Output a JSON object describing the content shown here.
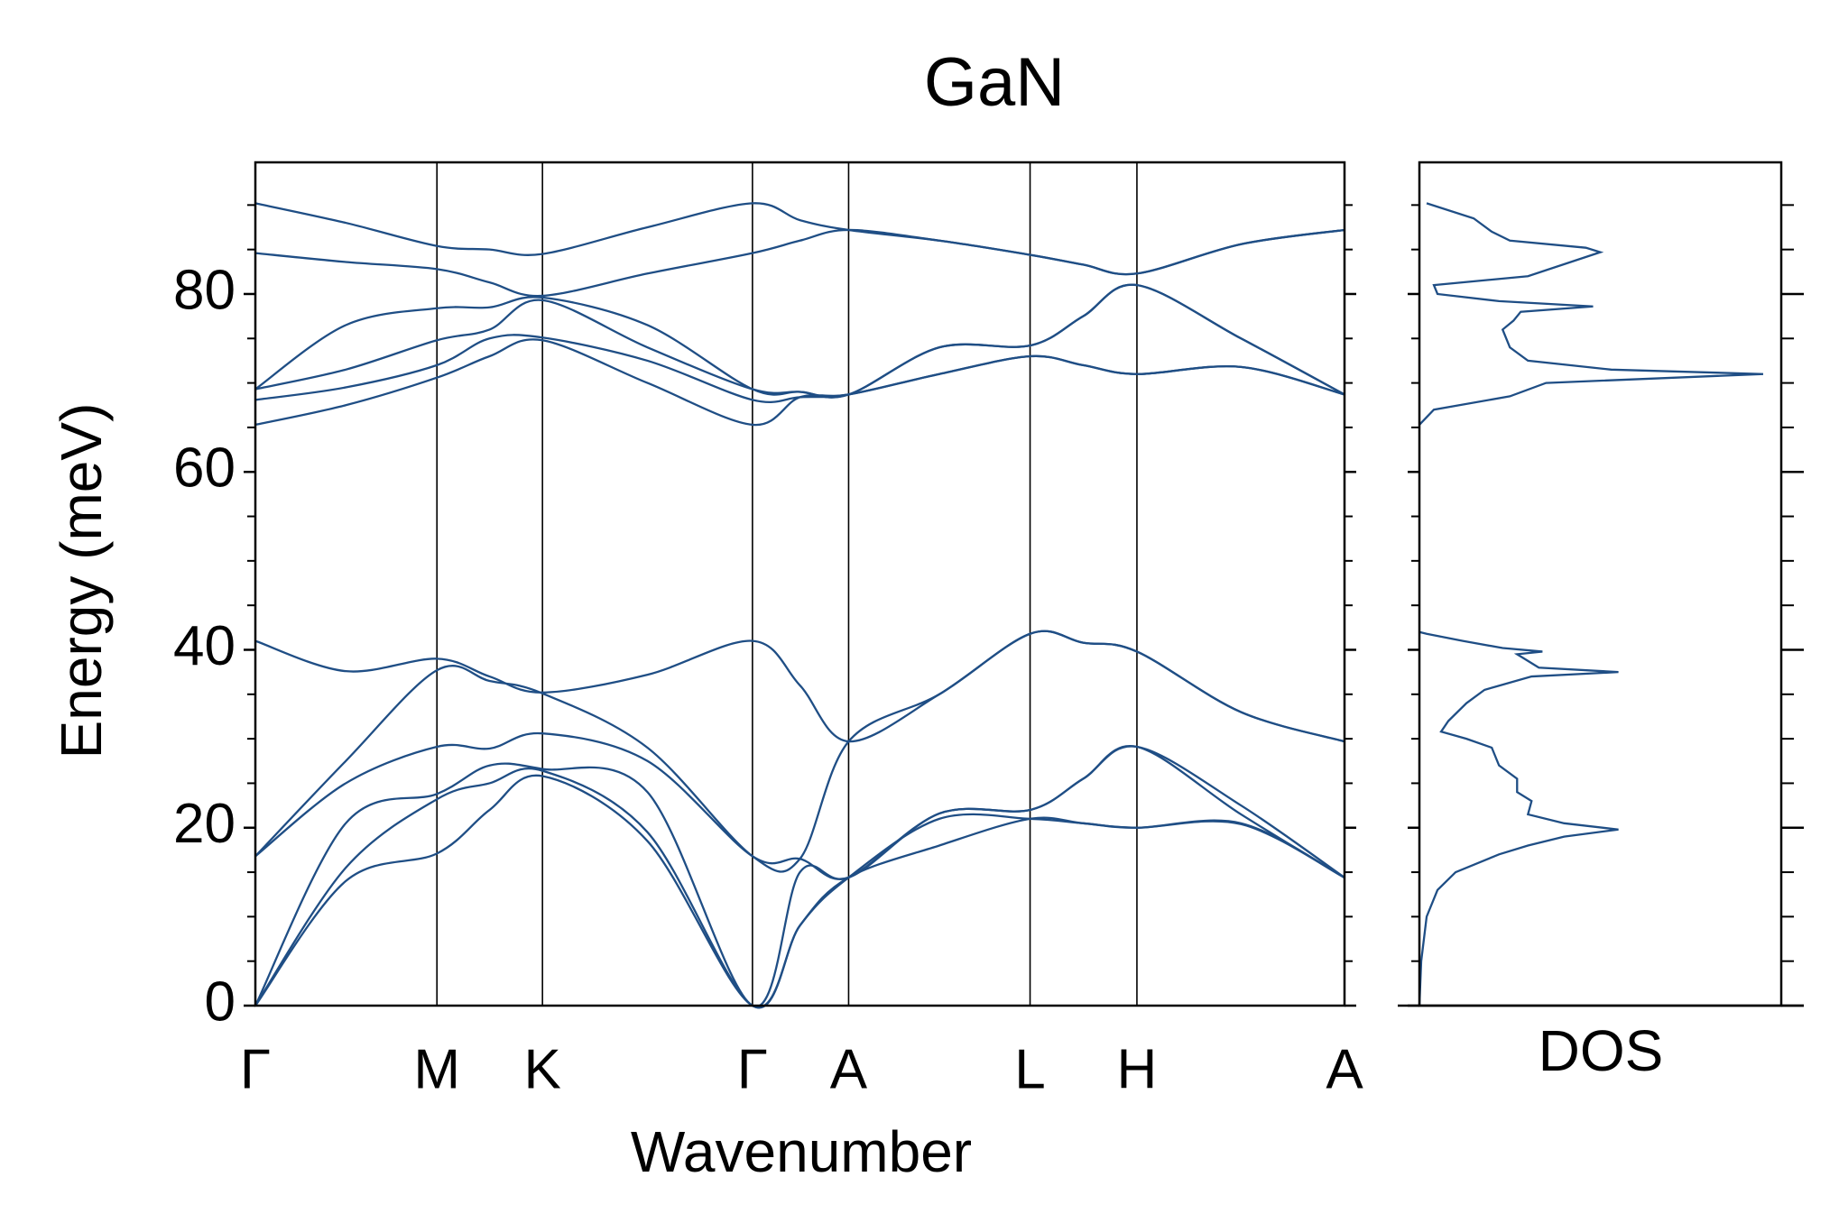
{
  "chart_data": [
    {
      "type": "line",
      "title": "GaN",
      "xlabel": "Wavenumber",
      "ylabel": "Energy (meV)",
      "x": [
        0,
        0.083,
        0.1667,
        0.215,
        0.2636,
        0.36,
        0.4564,
        0.5,
        0.5447,
        0.628,
        0.7113,
        0.76,
        0.8094,
        0.905,
        1.0
      ],
      "xlim": [
        0,
        1
      ],
      "xticks": [
        {
          "value": 0,
          "label": "Γ"
        },
        {
          "value": 0.1667,
          "label": "M"
        },
        {
          "value": 0.2636,
          "label": "K"
        },
        {
          "value": 0.4564,
          "label": "Γ"
        },
        {
          "value": 0.5447,
          "label": "A"
        },
        {
          "value": 0.7113,
          "label": "L"
        },
        {
          "value": 0.8094,
          "label": "H"
        },
        {
          "value": 1.0,
          "label": "A"
        }
      ],
      "ylim": [
        0,
        94.8
      ],
      "yticks": [
        0,
        20,
        40,
        60,
        80
      ],
      "yminor": [
        5,
        10,
        15,
        25,
        30,
        35,
        45,
        50,
        55,
        65,
        70,
        75,
        85,
        90
      ],
      "series": [
        {
          "color": "#1f4e85",
          "values": [
            0,
            14,
            17.1,
            22,
            25.8,
            18.5,
            0,
            9,
            14.4,
            18,
            21,
            20.5,
            20,
            20.4,
            14.4
          ]
        },
        {
          "color": "#1f4e85",
          "values": [
            0,
            15.5,
            23.2,
            25,
            26.4,
            19.5,
            0,
            9,
            14.4,
            21,
            21,
            20.5,
            20,
            20.5,
            14.4
          ]
        },
        {
          "color": "#1f4e85",
          "values": [
            0,
            20.5,
            23.8,
            27,
            26.6,
            24,
            0,
            15,
            14.4,
            21.6,
            22,
            25.5,
            29.1,
            21.5,
            14.4
          ]
        },
        {
          "color": "#1f4e85",
          "values": [
            16.8,
            25,
            29.1,
            28.9,
            30.6,
            27.5,
            16.8,
            16.5,
            14.4,
            21.6,
            22,
            25.5,
            29.1,
            22.5,
            14.4
          ]
        },
        {
          "color": "#1f4e85",
          "values": [
            16.8,
            27.5,
            37.7,
            36.5,
            35.1,
            29,
            16.8,
            16.5,
            29.7,
            35,
            41.8,
            40.8,
            39.8,
            33,
            29.7
          ]
        },
        {
          "color": "#1f4e85",
          "values": [
            41.0,
            37.6,
            39.0,
            37,
            35.2,
            37.2,
            41.0,
            36,
            29.7,
            35,
            41.8,
            40.8,
            39.8,
            33,
            29.7
          ]
        },
        {
          "color": "#1f4e85",
          "values": [
            65.3,
            67.5,
            70.6,
            73,
            74.8,
            70,
            65.3,
            68.4,
            68.7,
            71,
            73,
            72,
            71,
            71.8,
            68.7
          ]
        },
        {
          "color": "#1f4e85",
          "values": [
            68.1,
            69.5,
            72.0,
            75,
            75.1,
            72.5,
            68.1,
            68.4,
            68.7,
            71,
            73,
            72,
            71,
            71.8,
            68.7
          ]
        },
        {
          "color": "#1f4e85",
          "values": [
            69.3,
            71.5,
            74.8,
            76,
            79.3,
            74,
            69.3,
            69,
            68.7,
            74,
            74.2,
            77.5,
            81,
            75,
            68.7
          ]
        },
        {
          "color": "#1f4e85",
          "values": [
            69.3,
            76.5,
            78.4,
            78.5,
            79.6,
            76.5,
            69.3,
            69,
            68.7,
            74,
            74.2,
            77.5,
            81,
            75,
            68.7
          ]
        },
        {
          "color": "#1f4e85",
          "values": [
            84.6,
            83.6,
            82.8,
            81.3,
            79.8,
            82.3,
            84.6,
            86,
            87.2,
            86,
            84.4,
            83.3,
            82.3,
            85.6,
            87.2
          ]
        },
        {
          "color": "#1f4e85",
          "values": [
            90.2,
            88,
            85.4,
            85,
            84.5,
            87.5,
            90.2,
            88.3,
            87.2,
            86,
            84.4,
            83.3,
            82.3,
            85.6,
            87.2
          ]
        }
      ]
    },
    {
      "type": "dos",
      "xlabel": "DOS",
      "xlim": [
        0,
        1
      ],
      "ylim": [
        0,
        94.8
      ],
      "yticks": [
        0,
        20,
        40,
        60,
        80
      ],
      "yminor": [
        5,
        10,
        15,
        25,
        30,
        35,
        45,
        50,
        55,
        65,
        70,
        75,
        85,
        90
      ],
      "x": [
        0,
        0.005,
        0.02,
        0.05,
        0.1,
        0.22,
        0.3,
        0.4,
        0.55,
        0.4,
        0.3,
        0.31,
        0.27,
        0.27,
        0.22,
        0.2,
        0.13,
        0.06,
        0.08,
        0.13,
        0.18,
        0.31,
        0.55,
        0.33,
        0.27,
        0.34,
        0.23,
        0.12,
        0.02,
        0,
        0,
        0,
        0.04,
        0.25,
        0.35,
        0.95,
        0.53,
        0.3,
        0.25,
        0.23,
        0.26,
        0.28,
        0.48,
        0.22,
        0.05,
        0.04,
        0.3,
        0.5,
        0.46,
        0.25,
        0.2,
        0.15,
        0.02
      ],
      "series": [
        {
          "color": "#1f4e85",
          "values": [
            0,
            5,
            10,
            13,
            15,
            17,
            18,
            19,
            19.8,
            20.5,
            21.5,
            23,
            24,
            25.5,
            27,
            29,
            30,
            30.8,
            32,
            34,
            35.5,
            37,
            37.5,
            38,
            39.5,
            39.8,
            40.2,
            41,
            41.8,
            42,
            null,
            65.3,
            67,
            68.5,
            70,
            71,
            71.5,
            72.5,
            74,
            76,
            77,
            78,
            78.6,
            79.2,
            80,
            81,
            82,
            84.7,
            85.2,
            86,
            87,
            88.5,
            90.2
          ]
        }
      ]
    }
  ]
}
